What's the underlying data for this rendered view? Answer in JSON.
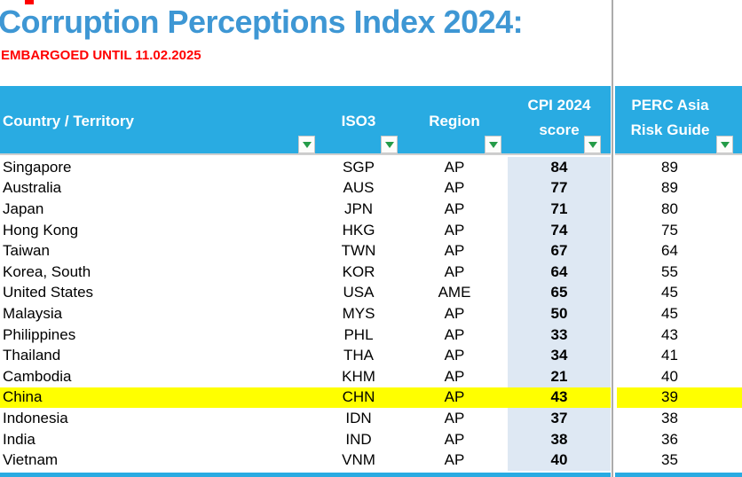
{
  "page": {
    "title": "Corruption Perceptions Index 2024:",
    "embargo": "EMBARGOED UNTIL 11.02.2025"
  },
  "colors": {
    "header_cyan": "#29ABE2",
    "title_blue": "#3E97D4",
    "embargo_red": "#FF0000",
    "cpi_column_bg": "#DEE8F3",
    "highlight_yellow": "#FFFF00",
    "separator_grey": "#ABABAB",
    "filter_arrow_green": "#259B48"
  },
  "icons": {
    "filter_dropdown": "triangle-down"
  },
  "table": {
    "columns": [
      {
        "key": "country",
        "label": "Country / Territory"
      },
      {
        "key": "iso3",
        "label": "ISO3"
      },
      {
        "key": "region",
        "label": "Region"
      },
      {
        "key": "cpi",
        "label": "CPI 2024 score",
        "line1": "CPI 2024",
        "line2": "score"
      },
      {
        "key": "perc",
        "label": "PERC Asia Risk Guide",
        "line1": "PERC Asia",
        "line2": "Risk Guide"
      }
    ],
    "rows": [
      {
        "country": "Singapore",
        "iso3": "SGP",
        "region": "AP",
        "cpi": "84",
        "perc": "89",
        "highlight": false
      },
      {
        "country": "Australia",
        "iso3": "AUS",
        "region": "AP",
        "cpi": "77",
        "perc": "89",
        "highlight": false
      },
      {
        "country": "Japan",
        "iso3": "JPN",
        "region": "AP",
        "cpi": "71",
        "perc": "80",
        "highlight": false
      },
      {
        "country": "Hong Kong",
        "iso3": "HKG",
        "region": "AP",
        "cpi": "74",
        "perc": "75",
        "highlight": false
      },
      {
        "country": "Taiwan",
        "iso3": "TWN",
        "region": "AP",
        "cpi": "67",
        "perc": "64",
        "highlight": false
      },
      {
        "country": "Korea, South",
        "iso3": "KOR",
        "region": "AP",
        "cpi": "64",
        "perc": "55",
        "highlight": false
      },
      {
        "country": "United States",
        "iso3": "USA",
        "region": "AME",
        "cpi": "65",
        "perc": "45",
        "highlight": false
      },
      {
        "country": "Malaysia",
        "iso3": "MYS",
        "region": "AP",
        "cpi": "50",
        "perc": "45",
        "highlight": false
      },
      {
        "country": "Philippines",
        "iso3": "PHL",
        "region": "AP",
        "cpi": "33",
        "perc": "43",
        "highlight": false
      },
      {
        "country": "Thailand",
        "iso3": "THA",
        "region": "AP",
        "cpi": "34",
        "perc": "41",
        "highlight": false
      },
      {
        "country": "Cambodia",
        "iso3": "KHM",
        "region": "AP",
        "cpi": "21",
        "perc": "40",
        "highlight": false
      },
      {
        "country": "China",
        "iso3": "CHN",
        "region": "AP",
        "cpi": "43",
        "perc": "39",
        "highlight": true
      },
      {
        "country": "Indonesia",
        "iso3": "IDN",
        "region": "AP",
        "cpi": "37",
        "perc": "38",
        "highlight": false
      },
      {
        "country": "India",
        "iso3": "IND",
        "region": "AP",
        "cpi": "38",
        "perc": "36",
        "highlight": false
      },
      {
        "country": "Vietnam",
        "iso3": "VNM",
        "region": "AP",
        "cpi": "40",
        "perc": "35",
        "highlight": false
      }
    ]
  }
}
